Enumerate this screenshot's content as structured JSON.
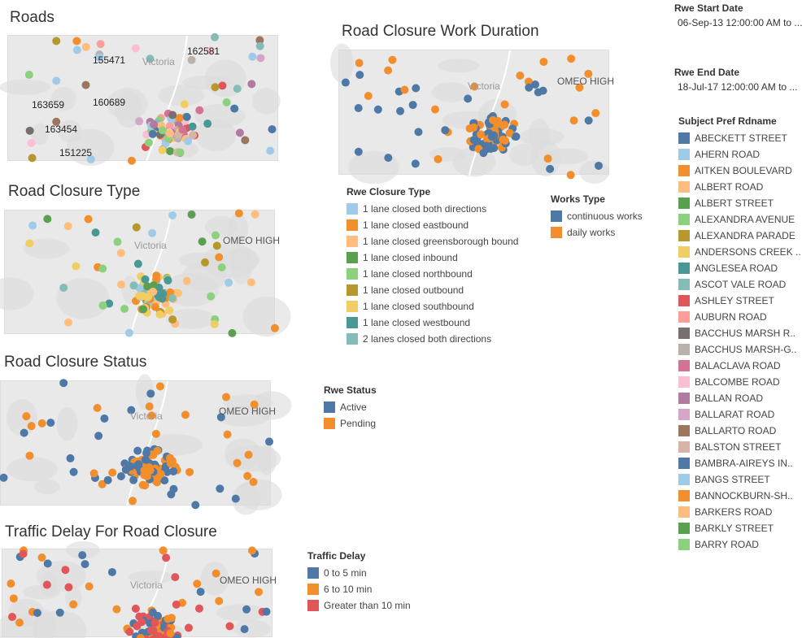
{
  "roads": {
    "title": "Roads",
    "labels": [
      "155471",
      "162581",
      "163659",
      "160689",
      "163454",
      "151225"
    ],
    "map_region": "Victoria"
  },
  "work_duration": {
    "title": "Road Closure Work Duration",
    "map_region": "Victoria",
    "map_place": "OMEO HIGH"
  },
  "closure_type": {
    "title": "Road Closure Type",
    "map_region": "Victoria",
    "map_place": "OMEO HIGH",
    "legend": {
      "title": "Rwe Closure Type",
      "items": [
        {
          "label": "1 lane closed both directions",
          "color": "#a0cbe8"
        },
        {
          "label": "1 lane closed eastbound",
          "color": "#f28e2b"
        },
        {
          "label": "1 lane closed greensborough bound",
          "color": "#ffbe7d"
        },
        {
          "label": "1 lane closed inbound",
          "color": "#59a14f"
        },
        {
          "label": "1 lane closed northbound",
          "color": "#8cd17d"
        },
        {
          "label": "1 lane closed outbound",
          "color": "#b6992d"
        },
        {
          "label": "1 lane closed southbound",
          "color": "#f1ce63"
        },
        {
          "label": "1 lane closed westbound",
          "color": "#499894"
        },
        {
          "label": "2 lanes closed both directions",
          "color": "#86bcb6"
        }
      ]
    }
  },
  "works_type": {
    "legend": {
      "title": "Works Type",
      "items": [
        {
          "label": "continuous works",
          "color": "#4e79a7"
        },
        {
          "label": "daily works",
          "color": "#f28e2b"
        }
      ]
    }
  },
  "closure_status": {
    "title": "Road Closure Status",
    "map_region": "Victoria",
    "map_place": "OMEO HIGH",
    "legend": {
      "title": "Rwe Status",
      "items": [
        {
          "label": "Active",
          "color": "#4e79a7"
        },
        {
          "label": "Pending",
          "color": "#f28e2b"
        }
      ]
    }
  },
  "traffic_delay": {
    "title": "Traffic Delay For Road Closure",
    "map_region": "Victoria",
    "map_place": "OMEO HIGH",
    "legend": {
      "title": "Traffic Delay",
      "items": [
        {
          "label": "0 to 5 min",
          "color": "#4e79a7"
        },
        {
          "label": "6 to 10 min",
          "color": "#f28e2b"
        },
        {
          "label": "Greater than 10 min",
          "color": "#e15759"
        }
      ]
    }
  },
  "filters": {
    "start": {
      "title": "Rwe Start Date",
      "value": "06-Sep-13 12:00:00 AM to ..."
    },
    "end": {
      "title": "Rwe End Date",
      "value": "18-Jul-17 12:00:00 AM to ..."
    }
  },
  "road_legend": {
    "title": "Subject Pref Rdname",
    "items": [
      {
        "label": "ABECKETT STREET",
        "color": "#4e79a7"
      },
      {
        "label": "AHERN ROAD",
        "color": "#a0cbe8"
      },
      {
        "label": "AITKEN BOULEVARD",
        "color": "#f28e2b"
      },
      {
        "label": "ALBERT ROAD",
        "color": "#ffbe7d"
      },
      {
        "label": "ALBERT STREET",
        "color": "#59a14f"
      },
      {
        "label": "ALEXANDRA AVENUE",
        "color": "#8cd17d"
      },
      {
        "label": "ALEXANDRA PARADE",
        "color": "#b6992d"
      },
      {
        "label": "ANDERSONS CREEK ..",
        "color": "#f1ce63"
      },
      {
        "label": "ANGLESEA ROAD",
        "color": "#499894"
      },
      {
        "label": "ASCOT VALE ROAD",
        "color": "#86bcb6"
      },
      {
        "label": "ASHLEY STREET",
        "color": "#e15759"
      },
      {
        "label": "AUBURN ROAD",
        "color": "#ff9d9a"
      },
      {
        "label": "BACCHUS MARSH R..",
        "color": "#79706e"
      },
      {
        "label": "BACCHUS MARSH-G..",
        "color": "#bab0ac"
      },
      {
        "label": "BALACLAVA ROAD",
        "color": "#d37295"
      },
      {
        "label": "BALCOMBE ROAD",
        "color": "#fabfd2"
      },
      {
        "label": "BALLAN ROAD",
        "color": "#b07aa1"
      },
      {
        "label": "BALLARAT ROAD",
        "color": "#d4a6c8"
      },
      {
        "label": "BALLARTO ROAD",
        "color": "#9d7660"
      },
      {
        "label": "BALSTON STREET",
        "color": "#d7b5a6"
      },
      {
        "label": "BAMBRA-AIREYS IN..",
        "color": "#4e79a7"
      },
      {
        "label": "BANGS STREET",
        "color": "#a0cbe8"
      },
      {
        "label": "BANNOCKBURN-SH..",
        "color": "#f28e2b"
      },
      {
        "label": "BARKERS ROAD",
        "color": "#ffbe7d"
      },
      {
        "label": "BARKLY STREET",
        "color": "#59a14f"
      },
      {
        "label": "BARRY ROAD",
        "color": "#8cd17d"
      }
    ]
  }
}
